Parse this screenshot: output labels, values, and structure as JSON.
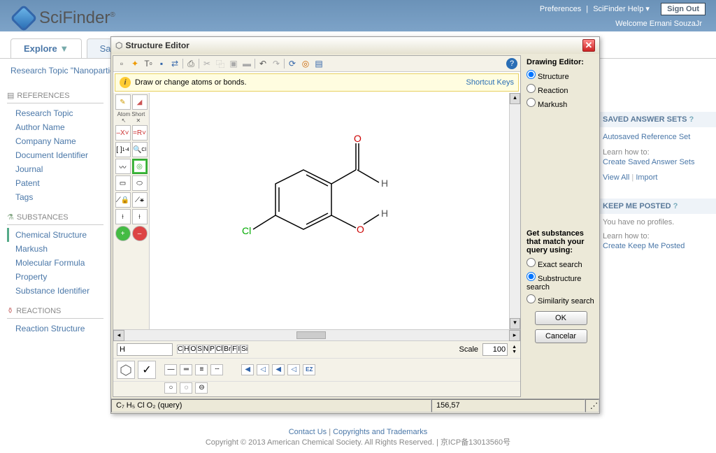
{
  "brand": {
    "name": "SciFinder",
    "registered": "®"
  },
  "top_links": {
    "prefs": "Preferences",
    "help": "SciFinder Help",
    "signout": "Sign Out"
  },
  "welcome": "Welcome Ernani SouzaJr",
  "tabs": {
    "explore": "Explore",
    "saved": "Saved"
  },
  "breadcrumb": "Research Topic \"Nanoparticle",
  "sidebar": {
    "references": {
      "title": "REFERENCES",
      "items": [
        "Research Topic",
        "Author Name",
        "Company Name",
        "Document Identifier",
        "Journal",
        "Patent",
        "Tags"
      ]
    },
    "substances": {
      "title": "SUBSTANCES",
      "items": [
        "Chemical Structure",
        "Markush",
        "Molecular Formula",
        "Property",
        "Substance Identifier"
      ],
      "active_index": 0
    },
    "reactions": {
      "title": "REACTIONS",
      "items": [
        "Reaction Structure"
      ]
    }
  },
  "right": {
    "saved": {
      "title": "SAVED ANSWER SETS",
      "autosaved": "Autosaved Reference Set",
      "learn": "Learn how to:",
      "create": "Create Saved Answer Sets",
      "viewall": "View All",
      "import": "Import"
    },
    "keep": {
      "title": "KEEP ME POSTED",
      "noprofiles": "You have no profiles.",
      "learn": "Learn how to:",
      "create": "Create Keep Me Posted"
    }
  },
  "editor": {
    "title": "Structure Editor",
    "drawing_editor": {
      "title": "Drawing Editor:",
      "options": [
        "Structure",
        "Reaction",
        "Markush"
      ],
      "selected": 0
    },
    "match": {
      "title": "Get substances that match your query using:",
      "options": [
        "Exact search",
        "Substructure search",
        "Similarity search"
      ],
      "selected": 1
    },
    "buttons": {
      "ok": "OK",
      "cancel": "Cancelar"
    },
    "hint": "Draw or change atoms or bonds.",
    "shortcut": "Shortcut Keys",
    "atom_input_value": "H",
    "atom_buttons": [
      "C",
      "H",
      "O",
      "S",
      "N",
      "P",
      "Cl",
      "Br",
      "F",
      "I",
      "Si"
    ],
    "scale_label": "Scale",
    "scale_value": "100",
    "formula": "C₇ H₅ Cl O₂ (query)",
    "mass": "156,57",
    "molecule": {
      "atoms": {
        "Cl": "Cl",
        "O1": "O",
        "O2": "O",
        "H1": "H",
        "H2": "H"
      },
      "colors": {
        "bond": "#000000",
        "oxygen": "#cc0000",
        "chlorine": "#00aa00",
        "hydrogen": "#555555"
      }
    }
  },
  "footer": {
    "contact": "Contact Us",
    "copy": "Copyrights and Trademarks",
    "text": "Copyright © 2013 American Chemical Society. All Rights Reserved.  |  京ICP备13013560号"
  }
}
